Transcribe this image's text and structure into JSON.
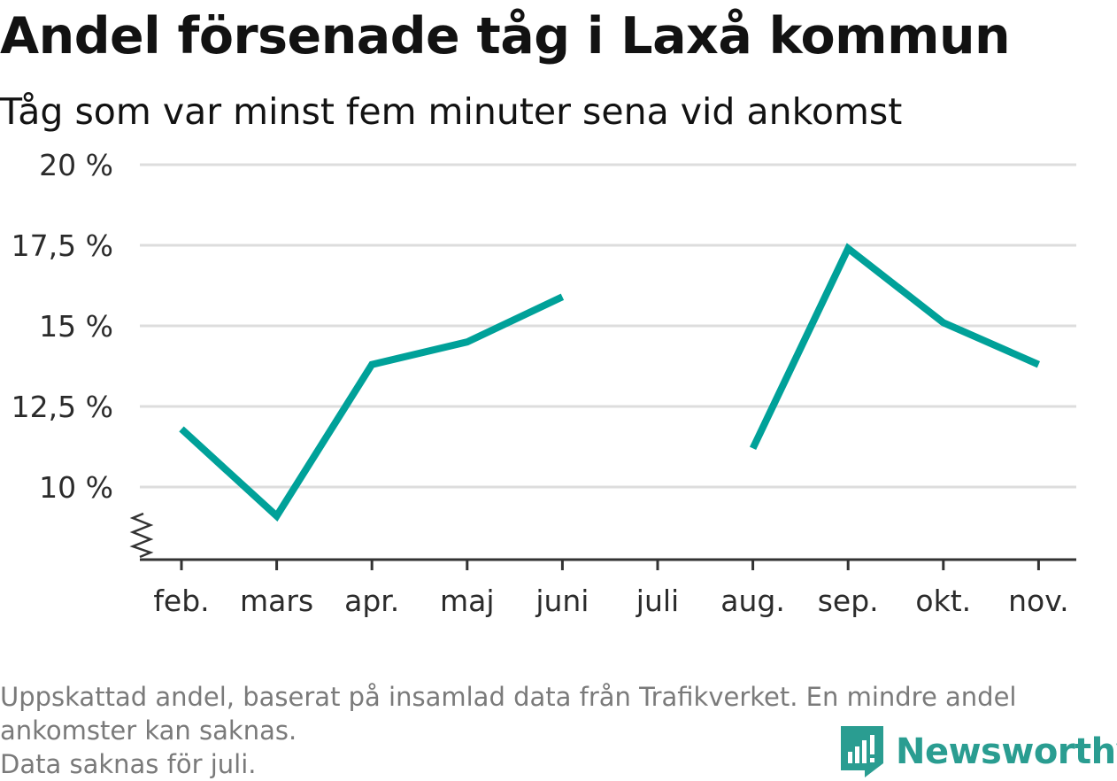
{
  "header": {
    "title": "Andel försenade tåg i Laxå kommun",
    "subtitle": "Tåg som var minst fem minuter sena vid ankomst"
  },
  "footnote": {
    "line1": "Uppskattad andel, baserat på insamlad data från Trafikverket. En mindre andel ankomster kan saknas.",
    "line2": "Data saknas för juli."
  },
  "brand": {
    "name": "Newsworthy",
    "icon": "newsworthy-logo-icon",
    "color": "#2a9d91"
  },
  "chart_data": {
    "type": "line",
    "title": "Andel försenade tåg i Laxå kommun",
    "subtitle": "Tåg som var minst fem minuter sena vid ankomst",
    "categories": [
      "feb.",
      "mars",
      "apr.",
      "maj",
      "juni",
      "juli",
      "aug.",
      "sep.",
      "okt.",
      "nov."
    ],
    "series": [
      {
        "values": [
          11.8,
          9.1,
          13.8,
          14.5,
          15.9,
          null,
          11.2,
          17.4,
          15.1,
          13.8
        ]
      }
    ],
    "ylim": [
      7.8,
      20
    ],
    "yticks": [
      10,
      12.5,
      15,
      17.5,
      20
    ],
    "ytick_labels": [
      "10 %",
      "12,5 %",
      "15 %",
      "17,5 %",
      "20 %"
    ],
    "y_axis_break": true,
    "grid": true,
    "legend": "none",
    "line_color": "#00a199",
    "grid_color": "#dddddd",
    "axis_color": "#333333"
  }
}
